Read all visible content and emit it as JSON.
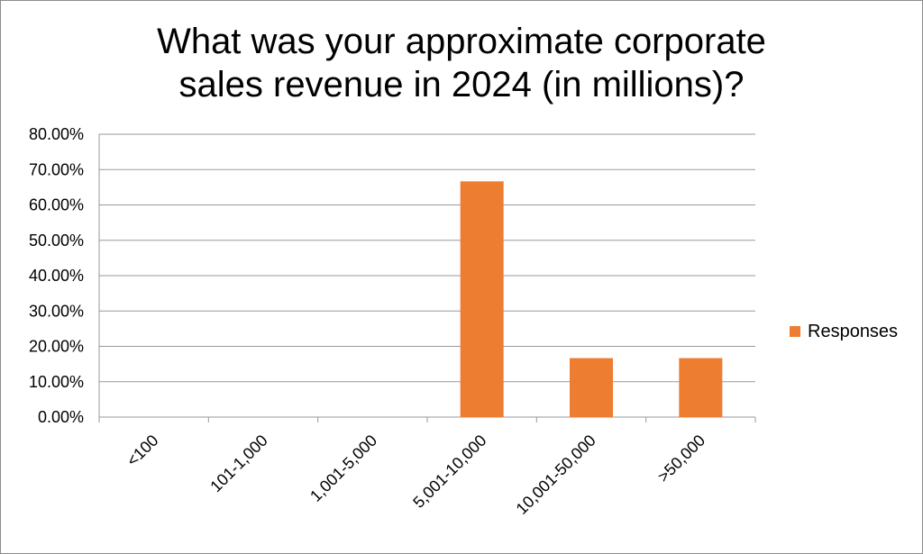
{
  "chart_data": {
    "type": "bar",
    "title_lines": [
      "What was your approximate corporate",
      "sales revenue in 2024 (in millions)?"
    ],
    "categories": [
      "<100",
      "101-1,000",
      "1,001-5,000",
      "5,001-10,000",
      "10,001-50,000",
      ">50,000"
    ],
    "series": [
      {
        "name": "Responses",
        "values": [
          0,
          0,
          0,
          66.67,
          16.67,
          16.67
        ],
        "color": "#ED7D31"
      }
    ],
    "ylim": [
      0,
      80
    ],
    "ytick_step": 10,
    "ytick_labels": [
      "0.00%",
      "10.00%",
      "20.00%",
      "30.00%",
      "40.00%",
      "50.00%",
      "60.00%",
      "70.00%",
      "80.00%"
    ],
    "grid": true,
    "legend_position": "right",
    "gridline_color": "#9a9a9a",
    "axis_color": "#9a9a9a"
  }
}
